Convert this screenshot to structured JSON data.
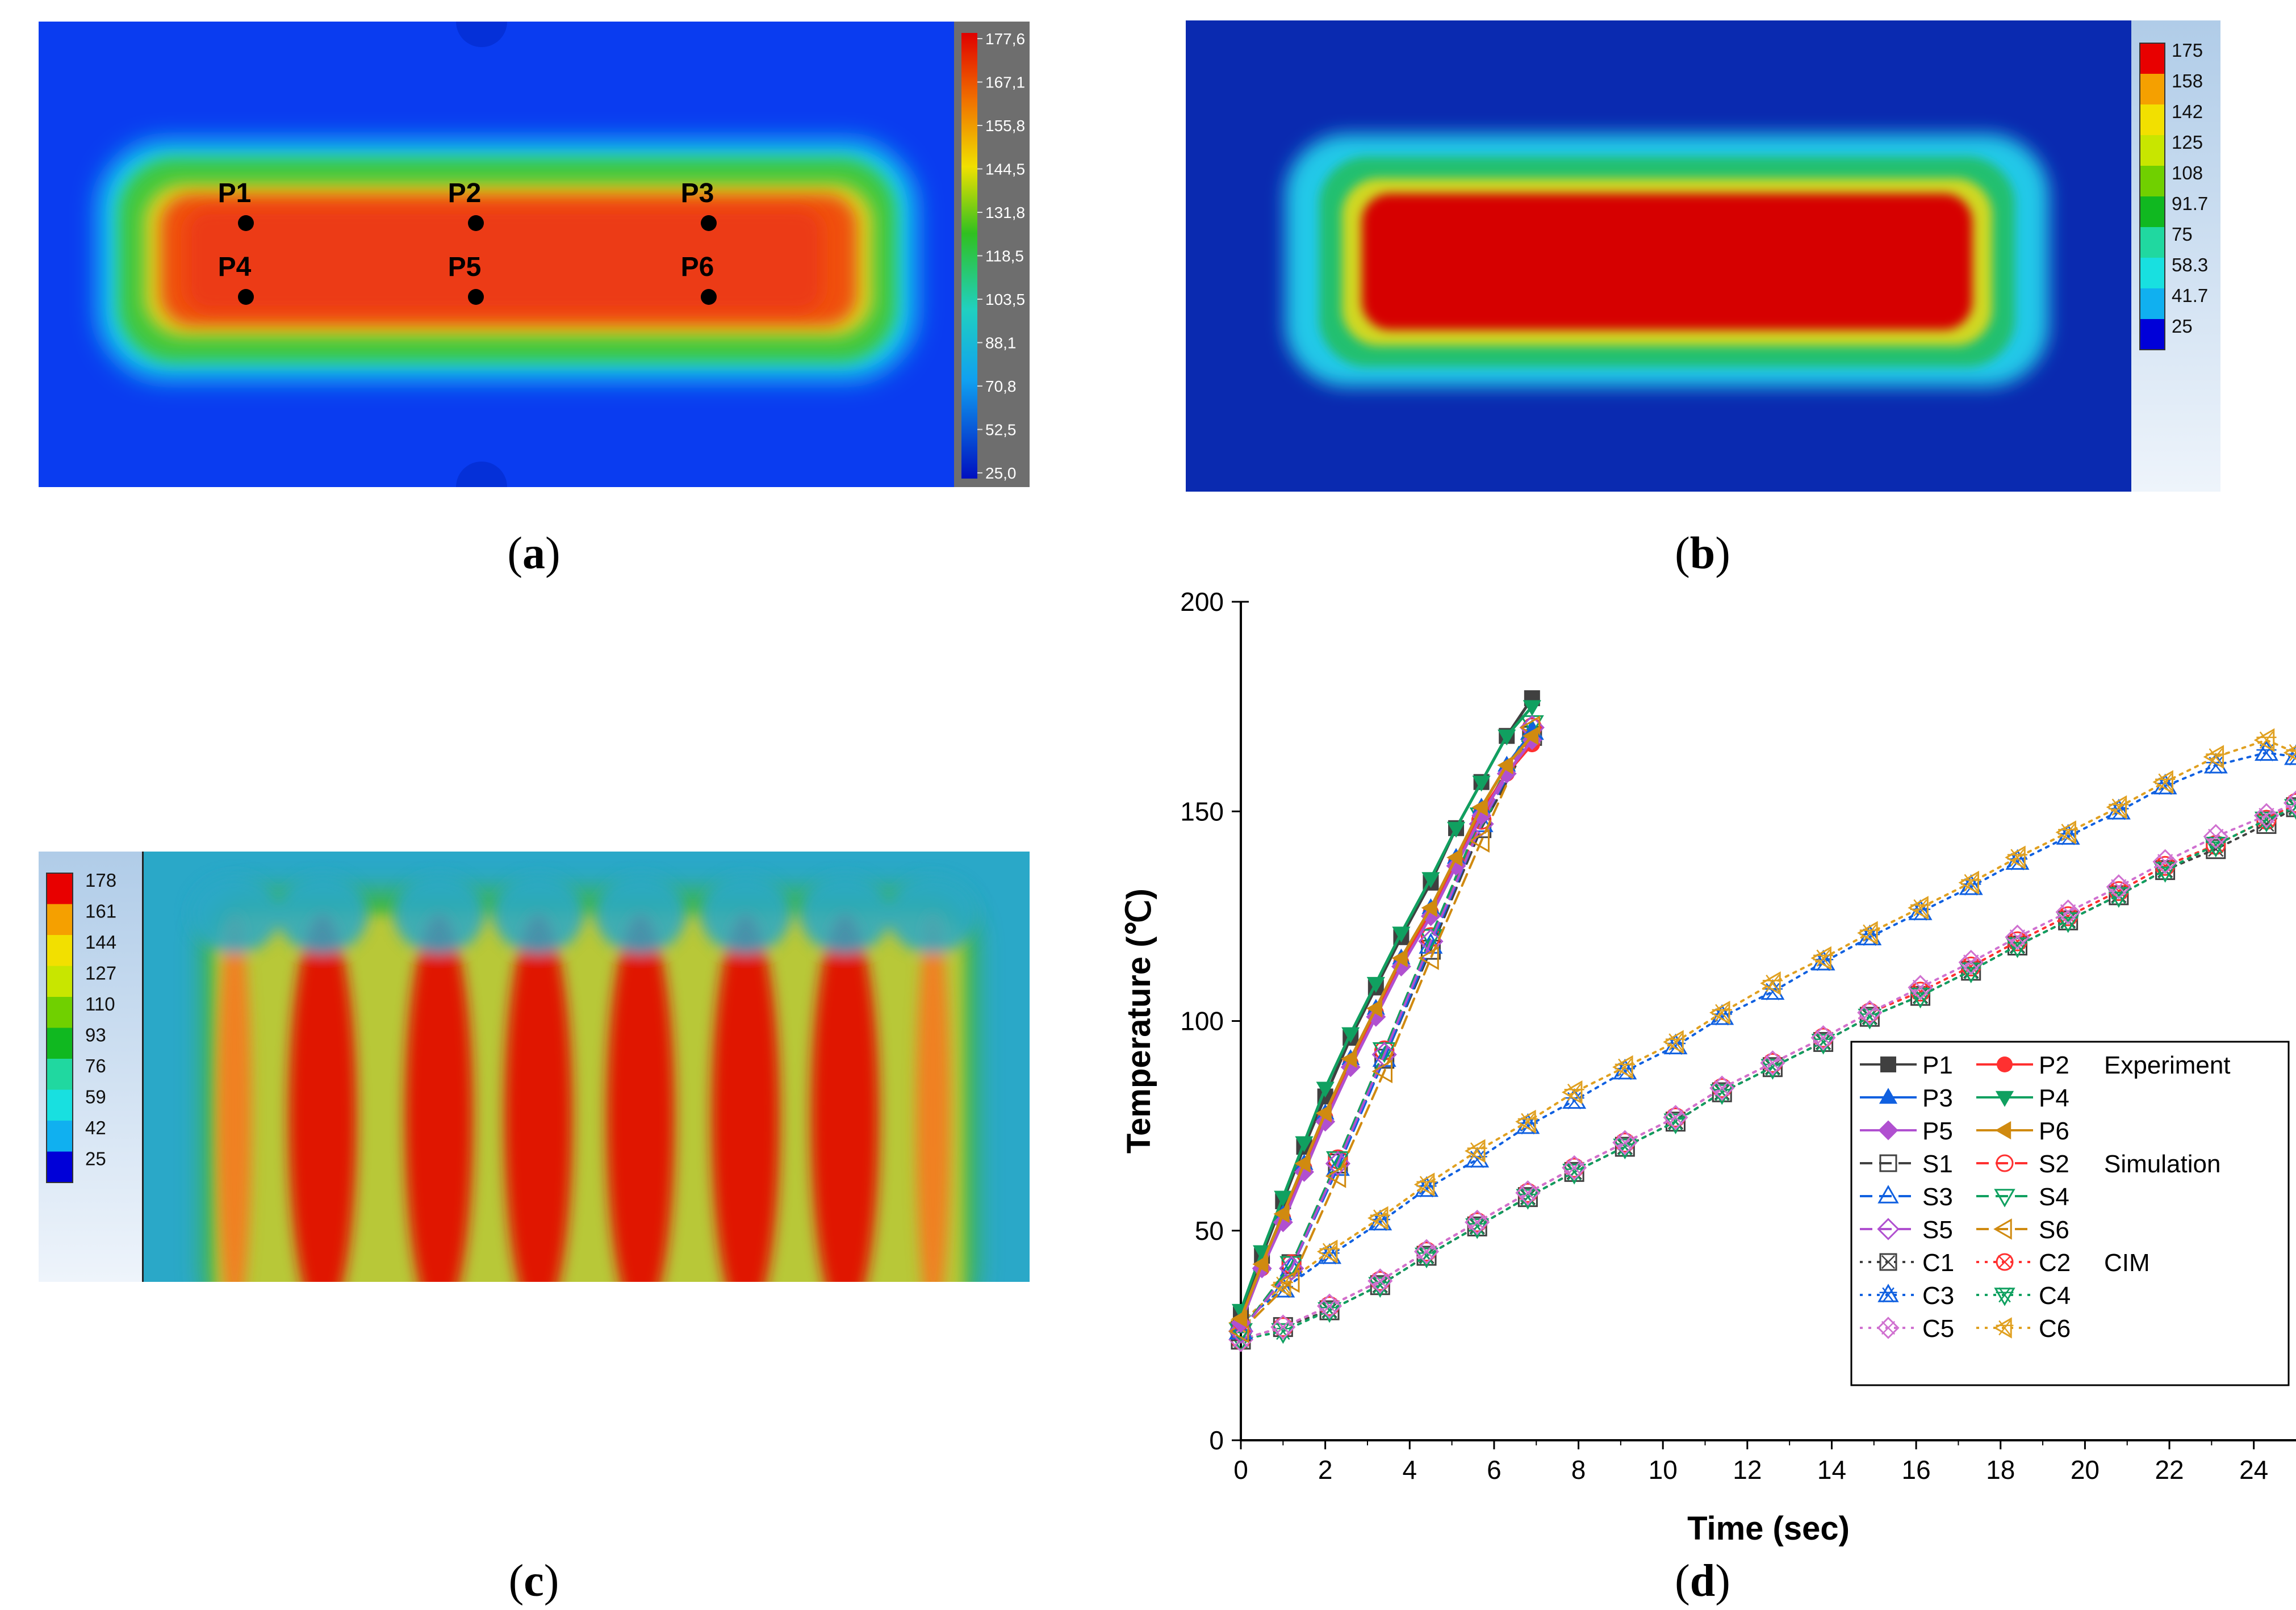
{
  "panels": {
    "a": {
      "caption_letter": "a",
      "colorbar_ticks": [
        "177,6",
        "167,1",
        "155,8",
        "144,5",
        "131,8",
        "118,5",
        "103,5",
        "88,1",
        "70,8",
        "52,5",
        "25,0"
      ],
      "points": [
        {
          "label": "P1"
        },
        {
          "label": "P2"
        },
        {
          "label": "P3"
        },
        {
          "label": "P4"
        },
        {
          "label": "P5"
        },
        {
          "label": "P6"
        }
      ]
    },
    "b": {
      "caption_letter": "b",
      "colorbar_ticks": [
        "175",
        "158",
        "142",
        "125",
        "108",
        "91.7",
        "75",
        "58.3",
        "41.7",
        "25"
      ],
      "colorbar_colors": [
        "#e80000",
        "#f5a000",
        "#f2e000",
        "#c8e600",
        "#70d000",
        "#10b820",
        "#20d8a0",
        "#18e0e0",
        "#10b0f0",
        "#0000d8"
      ]
    },
    "c": {
      "caption_letter": "c",
      "colorbar_ticks": [
        "178",
        "161",
        "144",
        "127",
        "110",
        "93",
        "76",
        "59",
        "42",
        "25"
      ],
      "colorbar_colors": [
        "#e80000",
        "#f5a000",
        "#f2e000",
        "#c8e600",
        "#70d000",
        "#10b820",
        "#20d8a0",
        "#18e0e0",
        "#10b0f0",
        "#0000d8"
      ]
    },
    "d": {
      "caption_letter": "d"
    }
  },
  "chart_data": {
    "type": "line",
    "title": "",
    "xlabel": "Time (sec)",
    "ylabel": "Temperature (℃)",
    "xlim": [
      0,
      25
    ],
    "ylim": [
      0,
      200
    ],
    "xticks": [
      0,
      2,
      4,
      6,
      8,
      10,
      12,
      14,
      16,
      18,
      20,
      22,
      24
    ],
    "yticks": [
      0,
      50,
      100,
      150,
      200
    ],
    "legend_groups": [
      "Experiment",
      "Simulation",
      "CIM"
    ],
    "series": [
      {
        "name": "P1",
        "group": "Experiment",
        "color": "#404040",
        "marker": "square-filled",
        "dash": "solid",
        "x": [
          0,
          0.5,
          1,
          1.5,
          2,
          2.6,
          3.2,
          3.8,
          4.5,
          5.1,
          5.7,
          6.3,
          6.9
        ],
        "y": [
          30,
          44,
          57,
          70,
          82,
          96,
          108,
          120,
          133,
          146,
          157,
          168,
          177
        ]
      },
      {
        "name": "P2",
        "group": "Experiment",
        "color": "#ff3030",
        "marker": "circle-filled",
        "dash": "solid",
        "x": [
          0,
          0.5,
          1,
          1.5,
          2,
          2.6,
          3.2,
          3.8,
          4.5,
          5.1,
          5.7,
          6.3,
          6.9
        ],
        "y": [
          28,
          41,
          53,
          65,
          77,
          90,
          102,
          114,
          126,
          138,
          150,
          159,
          166
        ]
      },
      {
        "name": "P3",
        "group": "Experiment",
        "color": "#1060e0",
        "marker": "triangle-up-filled",
        "dash": "solid",
        "x": [
          0,
          0.5,
          1,
          1.5,
          2,
          2.6,
          3.2,
          3.8,
          4.5,
          5.1,
          5.7,
          6.3,
          6.9
        ],
        "y": [
          29,
          42,
          54,
          66,
          78,
          91,
          103,
          115,
          127,
          139,
          151,
          161,
          169
        ]
      },
      {
        "name": "P4",
        "group": "Experiment",
        "color": "#10a060",
        "marker": "triangle-down-filled",
        "dash": "solid",
        "x": [
          0,
          0.5,
          1,
          1.5,
          2,
          2.6,
          3.2,
          3.8,
          4.5,
          5.1,
          5.7,
          6.3,
          6.9
        ],
        "y": [
          31,
          45,
          58,
          71,
          84,
          97,
          109,
          121,
          134,
          146,
          157,
          168,
          175
        ]
      },
      {
        "name": "P5",
        "group": "Experiment",
        "color": "#b050d0",
        "marker": "diamond-filled",
        "dash": "solid",
        "x": [
          0,
          0.5,
          1,
          1.5,
          2,
          2.6,
          3.2,
          3.8,
          4.5,
          5.1,
          5.7,
          6.3,
          6.9
        ],
        "y": [
          28,
          41,
          52,
          64,
          76,
          89,
          101,
          113,
          125,
          137,
          149,
          159,
          167
        ]
      },
      {
        "name": "P6",
        "group": "Experiment",
        "color": "#d08a10",
        "marker": "triangle-left-filled",
        "dash": "solid",
        "x": [
          0,
          0.5,
          1,
          1.5,
          2,
          2.6,
          3.2,
          3.8,
          4.5,
          5.1,
          5.7,
          6.3,
          6.9
        ],
        "y": [
          29,
          42,
          54,
          66,
          78,
          91,
          103,
          115,
          127,
          139,
          151,
          161,
          168
        ]
      },
      {
        "name": "S1",
        "group": "Simulation",
        "color": "#404040",
        "marker": "square-open",
        "dash": "dash",
        "x": [
          0,
          1.2,
          2.3,
          3.4,
          4.5,
          5.7,
          6.9
        ],
        "y": [
          26,
          42,
          66,
          91,
          117,
          146,
          168
        ]
      },
      {
        "name": "S2",
        "group": "Simulation",
        "color": "#ff3030",
        "marker": "circle-open",
        "dash": "dash",
        "x": [
          0,
          1.2,
          2.3,
          3.4,
          4.5,
          5.7,
          6.9
        ],
        "y": [
          26,
          42,
          67,
          93,
          120,
          148,
          170
        ]
      },
      {
        "name": "S3",
        "group": "Simulation",
        "color": "#1060e0",
        "marker": "triangle-up-open",
        "dash": "dash",
        "x": [
          0,
          1.2,
          2.3,
          3.4,
          4.5,
          5.7,
          6.9
        ],
        "y": [
          26,
          41,
          65,
          91,
          118,
          147,
          169
        ]
      },
      {
        "name": "S4",
        "group": "Simulation",
        "color": "#10a060",
        "marker": "triangle-down-open",
        "dash": "dash",
        "x": [
          0,
          1.2,
          2.3,
          3.4,
          4.5,
          5.7,
          6.9
        ],
        "y": [
          26,
          42,
          67,
          93,
          120,
          149,
          171
        ]
      },
      {
        "name": "S5",
        "group": "Simulation",
        "color": "#b050d0",
        "marker": "diamond-open",
        "dash": "dash",
        "x": [
          0,
          1.2,
          2.3,
          3.4,
          4.5,
          5.7,
          6.9
        ],
        "y": [
          26,
          41,
          66,
          92,
          119,
          147,
          170
        ]
      },
      {
        "name": "S6",
        "group": "Simulation",
        "color": "#d08a10",
        "marker": "triangle-left-open",
        "dash": "dash",
        "x": [
          0,
          1.2,
          2.3,
          3.4,
          4.5,
          5.7,
          6.9
        ],
        "y": [
          26,
          38,
          63,
          88,
          115,
          143,
          170
        ]
      },
      {
        "name": "C1",
        "group": "CIM",
        "color": "#404040",
        "marker": "square-x",
        "dash": "dot",
        "x": [
          0,
          1,
          2.1,
          3.3,
          4.4,
          5.6,
          6.8,
          7.9,
          9.1,
          10.3,
          11.4,
          12.6,
          13.8,
          14.9,
          16.1,
          17.3,
          18.4,
          19.6,
          20.8,
          21.9,
          23.1,
          24.3,
          25
        ],
        "y": [
          24,
          27,
          31,
          37,
          44,
          51,
          58,
          64,
          70,
          76,
          83,
          89,
          95,
          101,
          106,
          112,
          118,
          124,
          130,
          136,
          141,
          147,
          151
        ]
      },
      {
        "name": "C2",
        "group": "CIM",
        "color": "#ff3030",
        "marker": "circle-x",
        "dash": "dot",
        "x": [
          0,
          1,
          2.1,
          3.3,
          4.4,
          5.6,
          6.8,
          7.9,
          9.1,
          10.3,
          11.4,
          12.6,
          13.8,
          14.9,
          16.1,
          17.3,
          18.4,
          19.6,
          20.8,
          21.9,
          23.1,
          24.3,
          25
        ],
        "y": [
          24,
          27,
          32,
          38,
          45,
          52,
          59,
          65,
          71,
          77,
          84,
          90,
          96,
          102,
          107,
          113,
          119,
          125,
          131,
          137,
          142,
          148,
          152
        ]
      },
      {
        "name": "C3",
        "group": "CIM",
        "color": "#1060e0",
        "marker": "triangle-up-star",
        "dash": "dot",
        "x": [
          0,
          1,
          2.1,
          3.3,
          4.4,
          5.6,
          6.8,
          7.9,
          9.1,
          10.3,
          11.4,
          12.6,
          13.8,
          14.9,
          16.1,
          17.3,
          18.4,
          19.6,
          20.8,
          21.9,
          23.1,
          24.3,
          25
        ],
        "y": [
          28,
          36,
          44,
          52,
          60,
          67,
          75,
          81,
          88,
          94,
          101,
          107,
          114,
          120,
          126,
          132,
          138,
          144,
          150,
          156,
          161,
          164,
          163
        ]
      },
      {
        "name": "C4",
        "group": "CIM",
        "color": "#10a060",
        "marker": "triangle-down-star",
        "dash": "dot",
        "x": [
          0,
          1,
          2.1,
          3.3,
          4.4,
          5.6,
          6.8,
          7.9,
          9.1,
          10.3,
          11.4,
          12.6,
          13.8,
          14.9,
          16.1,
          17.3,
          18.4,
          19.6,
          20.8,
          21.9,
          23.1,
          24.3,
          25
        ],
        "y": [
          24,
          26,
          31,
          37,
          44,
          51,
          58,
          64,
          70,
          76,
          83,
          89,
          95,
          101,
          106,
          112,
          118,
          124,
          130,
          136,
          142,
          148,
          151
        ]
      },
      {
        "name": "C5",
        "group": "CIM",
        "color": "#d070d0",
        "marker": "diamond-x",
        "dash": "dot",
        "x": [
          0,
          1,
          2.1,
          3.3,
          4.4,
          5.6,
          6.8,
          7.9,
          9.1,
          10.3,
          11.4,
          12.6,
          13.8,
          14.9,
          16.1,
          17.3,
          18.4,
          19.6,
          20.8,
          21.9,
          23.1,
          24.3,
          25
        ],
        "y": [
          24,
          27,
          32,
          38,
          45,
          52,
          59,
          65,
          71,
          77,
          84,
          90,
          96,
          102,
          108,
          114,
          120,
          126,
          132,
          138,
          144,
          149,
          152
        ]
      },
      {
        "name": "C6",
        "group": "CIM",
        "color": "#e0a020",
        "marker": "triangle-left-star",
        "dash": "dot",
        "x": [
          0,
          1,
          2.1,
          3.3,
          4.4,
          5.6,
          6.8,
          7.9,
          9.1,
          10.3,
          11.4,
          12.6,
          13.8,
          14.9,
          16.1,
          17.3,
          18.4,
          19.6,
          20.8,
          21.9,
          23.1,
          24.3,
          25
        ],
        "y": [
          28,
          37,
          45,
          53,
          61,
          69,
          76,
          83,
          89,
          95,
          102,
          109,
          115,
          121,
          127,
          133,
          139,
          145,
          151,
          157,
          163,
          167,
          164
        ]
      }
    ]
  }
}
